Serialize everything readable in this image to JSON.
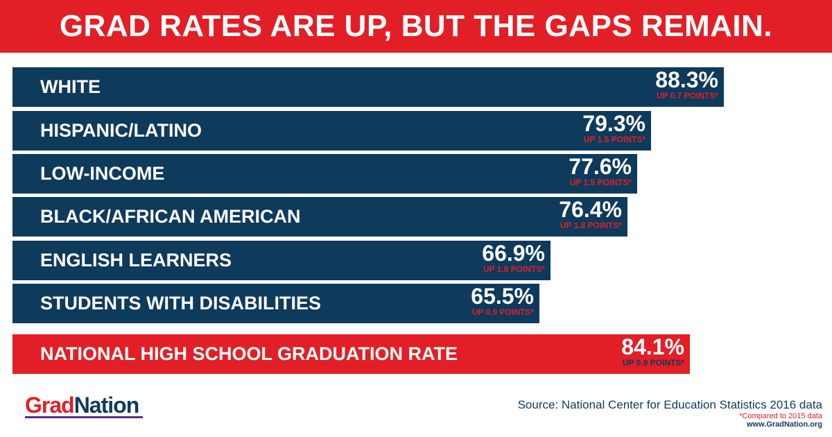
{
  "header": {
    "title": "GRAD RATES ARE UP, BUT THE GAPS REMAIN."
  },
  "chart_data": {
    "type": "bar",
    "orientation": "horizontal",
    "title": "GRAD RATES ARE UP, BUT THE GAPS REMAIN.",
    "categories": [
      "WHITE",
      "HISPANIC/LATINO",
      "LOW-INCOME",
      "BLACK/AFRICAN AMERICAN",
      "ENGLISH LEARNERS",
      "STUDENTS WITH DISABILITIES",
      "NATIONAL HIGH SCHOOL GRADUATION RATE"
    ],
    "values": [
      88.3,
      79.3,
      77.6,
      76.4,
      66.9,
      65.5,
      84.1
    ],
    "value_labels": [
      "88.3%",
      "79.3%",
      "77.6%",
      "76.4%",
      "66.9%",
      "65.5%",
      "84.1%"
    ],
    "change_labels": [
      "UP 0.7 POINTS*",
      "UP 1.5 POINTS*",
      "UP 1.5 POINTS*",
      "UP 1.8 POINTS*",
      "UP 1.8 POINTS*",
      "UP 0.9 POINTS*",
      "UP 0.9 POINTS*"
    ],
    "highlight_category": "NATIONAL HIGH SCHOOL GRADUATION RATE",
    "colors": {
      "group": "#0e3a5c",
      "national": "#e21f26"
    },
    "grid": false
  },
  "logo": {
    "part1": "Grad",
    "part2": "Nation"
  },
  "footer": {
    "source": "Source: National Center for Education Statistics 2016 data",
    "note": "*Compared to 2015 data",
    "site": "www.GradNation.org"
  }
}
